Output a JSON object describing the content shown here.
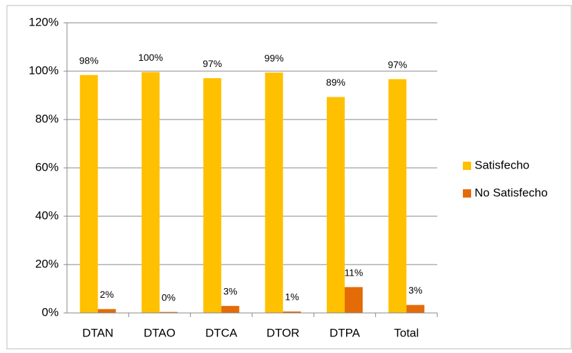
{
  "chart_data": {
    "type": "bar",
    "categories": [
      "DTAN",
      "DTAO",
      "DTCA",
      "DTOR",
      "DTPA",
      "Total"
    ],
    "series": [
      {
        "name": "Satisfecho",
        "color": "#FFC000",
        "values": [
          98.4,
          99.6,
          97.1,
          99.4,
          89.3,
          96.7
        ],
        "value_labels": [
          "98%",
          "100%",
          "97%",
          "99%",
          "89%",
          "97%"
        ]
      },
      {
        "name": "No Satisfecho",
        "color": "#E36C09",
        "values": [
          1.6,
          0.4,
          2.9,
          0.6,
          10.7,
          3.3
        ],
        "value_labels": [
          "2%",
          "0%",
          "3%",
          "1%",
          "11%",
          "3%"
        ]
      }
    ],
    "ylim": [
      0,
      120
    ],
    "yticks": [
      {
        "value": 0,
        "label": "0%"
      },
      {
        "value": 20,
        "label": "20%"
      },
      {
        "value": 40,
        "label": "40%"
      },
      {
        "value": 60,
        "label": "60%"
      },
      {
        "value": 80,
        "label": "80%"
      },
      {
        "value": 100,
        "label": "100%"
      },
      {
        "value": 120,
        "label": "120%"
      }
    ],
    "grid": true,
    "legend": "right"
  }
}
